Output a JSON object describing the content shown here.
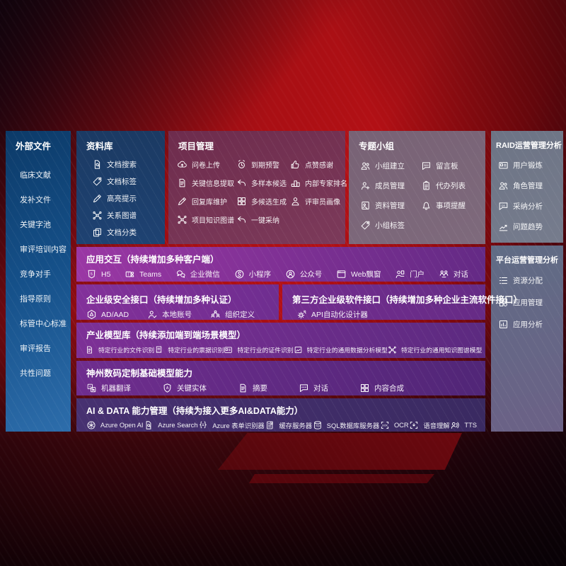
{
  "colors": {
    "background_red": "#b01015",
    "left_column_blue": "#155089",
    "repository_navy": "#1d4070",
    "project_maroon": "#753553",
    "groups_mauve": "#7b6578",
    "raid_slate": "#717888",
    "platform_slate": "#666786",
    "interaction_purple": "#8a33a0",
    "aidata_indigo": "#41306a",
    "text": "#ffffff"
  },
  "sections": {
    "external": {
      "title": "外部文件",
      "items": [
        "临床文献",
        "发补文件",
        "关键字池",
        "审评培训内容",
        "竞争对手",
        "指导原则",
        "标管中心标准",
        "审评报告",
        "共性问题"
      ]
    },
    "repo": {
      "title": "资料库",
      "items": [
        {
          "icon": "doc-search",
          "label": "文档搜索"
        },
        {
          "icon": "tag",
          "label": "文档标签"
        },
        {
          "icon": "pencil",
          "label": "高亮提示"
        },
        {
          "icon": "network",
          "label": "关系图谱"
        },
        {
          "icon": "copy",
          "label": "文档分类"
        }
      ]
    },
    "project": {
      "title": "项目管理",
      "items": [
        {
          "icon": "cloud-up",
          "label": "问卷上传"
        },
        {
          "icon": "alarm",
          "label": "到期预警"
        },
        {
          "icon": "thumb",
          "label": "点赞感谢"
        },
        {
          "icon": "doc-lines",
          "label": "关键信息提取"
        },
        {
          "icon": "reply",
          "label": "多样本候选"
        },
        {
          "icon": "rank",
          "label": "内部专家排名"
        },
        {
          "icon": "pencil",
          "label": "回复库维护"
        },
        {
          "icon": "grid",
          "label": "多候选生成"
        },
        {
          "icon": "person",
          "label": "评审员画像"
        },
        {
          "icon": "network",
          "label": "项目知识图谱"
        },
        {
          "icon": "reply",
          "label": "一键采纳"
        }
      ]
    },
    "groups": {
      "title": "专题小组",
      "items": [
        {
          "icon": "users",
          "label": "小组建立"
        },
        {
          "icon": "bbs",
          "label": "留言板"
        },
        {
          "icon": "person-plus",
          "label": "成员管理"
        },
        {
          "icon": "clipboard",
          "label": "代办列表"
        },
        {
          "icon": "album",
          "label": "资料管理"
        },
        {
          "icon": "bell",
          "label": "事项提醒"
        },
        {
          "icon": "tag",
          "label": "小组标签"
        }
      ]
    },
    "raid": {
      "title": "RAID运营管理分析",
      "items": [
        {
          "icon": "idcard",
          "label": "用户锻炼"
        },
        {
          "icon": "users",
          "label": "角色管理"
        },
        {
          "icon": "qa",
          "label": "采纳分析"
        },
        {
          "icon": "trend",
          "label": "问题趋势"
        }
      ]
    },
    "platform": {
      "title": "平台运营管理分析",
      "items": [
        {
          "icon": "list",
          "label": "资源分配"
        },
        {
          "icon": "apps",
          "label": "应用管理"
        },
        {
          "icon": "chart-app",
          "label": "应用分析"
        }
      ]
    },
    "interaction": {
      "title": "应用交互（持续增加多种客户端）",
      "items": [
        {
          "icon": "h5",
          "label": "H5"
        },
        {
          "icon": "teams",
          "label": "Teams"
        },
        {
          "icon": "wechat",
          "label": "企业微信"
        },
        {
          "icon": "mini",
          "label": "小程序"
        },
        {
          "icon": "official",
          "label": "公众号"
        },
        {
          "icon": "browser",
          "label": "Web飘窗"
        },
        {
          "icon": "portal",
          "label": "门户"
        },
        {
          "icon": "dialog",
          "label": "对话"
        }
      ]
    },
    "security": {
      "title": "企业级安全接口（持续增加多种认证）",
      "items": [
        {
          "icon": "ad",
          "label": "AD/AAD"
        },
        {
          "icon": "person-check",
          "label": "本地账号"
        },
        {
          "icon": "org",
          "label": "组织定义"
        }
      ]
    },
    "thirdparty": {
      "title": "第三方企业级软件接口（持续增加多种企业主流软件接口）",
      "items": [
        {
          "icon": "api",
          "label": "API自动化设计器"
        }
      ]
    },
    "industry_models": {
      "title": "产业模型库（持续添加端到端场景模型）",
      "items": [
        {
          "icon": "doc-lines",
          "label": "特定行业的文件识别"
        },
        {
          "icon": "receipt",
          "label": "特定行业的票据识别"
        },
        {
          "icon": "idcard",
          "label": "特定行业的证件识别"
        },
        {
          "icon": "frame-chart",
          "label": "特定行业的通用数据分析模型"
        },
        {
          "icon": "network",
          "label": "特定行业的通用知识图谱模型"
        }
      ]
    },
    "base_models": {
      "title": "神州数码定制基础模型能力",
      "items": [
        {
          "icon": "translate",
          "label": "机器翻译"
        },
        {
          "icon": "shield-a",
          "label": "关键实体"
        },
        {
          "icon": "doc-lines",
          "label": "摘要"
        },
        {
          "icon": "chat-dots",
          "label": "对话"
        },
        {
          "icon": "grid",
          "label": "内容合成"
        }
      ]
    },
    "aidata": {
      "title": "AI & DATA 能力管理（持续为接入更多AI&DATA能力）",
      "items": [
        {
          "icon": "openai",
          "label": "Azure Open AI"
        },
        {
          "icon": "doc-search",
          "label": "Azure Search"
        },
        {
          "icon": "form",
          "label": "Azure 表单识别器"
        },
        {
          "icon": "cache",
          "label": "缓存服务器"
        },
        {
          "icon": "sql",
          "label": "SQL数据库服务器"
        },
        {
          "icon": "ocr",
          "label": "OCR"
        },
        {
          "icon": "speech",
          "label": "语音理解"
        },
        {
          "icon": "tts",
          "label": "TTS"
        }
      ]
    }
  }
}
